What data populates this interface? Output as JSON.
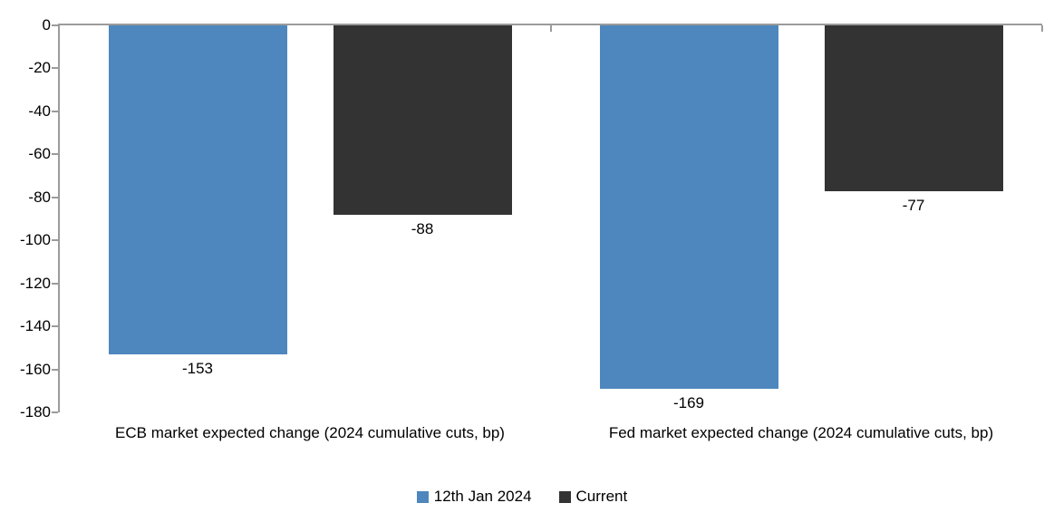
{
  "chart_data": {
    "type": "bar",
    "categories": [
      "ECB market expected change (2024 cumulative cuts, bp)",
      "Fed market expected change (2024 cumulative cuts, bp)"
    ],
    "series": [
      {
        "name": "12th Jan 2024",
        "color": "#4e87be",
        "values": [
          -153,
          -169
        ]
      },
      {
        "name": "Current",
        "color": "#333333",
        "values": [
          -88,
          -77
        ]
      }
    ],
    "data_labels": [
      [
        "-153",
        "-169"
      ],
      [
        "-88",
        "-77"
      ]
    ],
    "ylim": [
      -180,
      0
    ],
    "yticks": [
      0,
      -20,
      -40,
      -60,
      -80,
      -100,
      -120,
      -140,
      -160,
      -180
    ],
    "ytick_labels": [
      "0",
      "-20",
      "-40",
      "-60",
      "-80",
      "-100",
      "-120",
      "-140",
      "-160",
      "-180"
    ],
    "xlabel": "",
    "ylabel": "",
    "title": "",
    "grid": false,
    "legend_position": "bottom",
    "axis_color": "#9b9b9b"
  }
}
